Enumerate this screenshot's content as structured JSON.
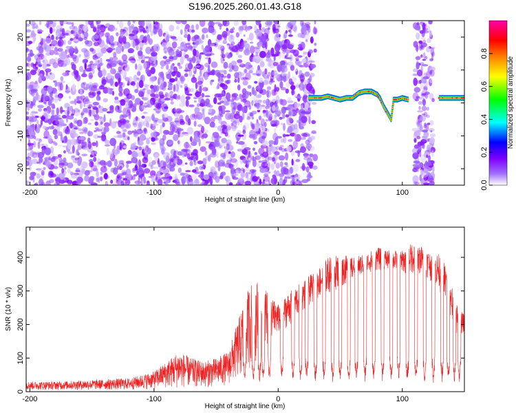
{
  "title": "S196.2025.260.01.43.G18",
  "chart_data": [
    {
      "type": "heatmap",
      "xlabel": "Height of straight line (km)",
      "ylabel": "Frequency (Hz)",
      "xlim": [
        -203,
        150
      ],
      "ylim": [
        -25,
        25
      ],
      "xticks": [
        -200,
        -100,
        0,
        100
      ],
      "yticks": [
        -20,
        -10,
        0,
        10,
        20
      ],
      "colorbar": {
        "label": "Normalized spectral amplitude",
        "range": [
          0,
          1
        ],
        "ticks": [
          0.0,
          0.2,
          0.4,
          0.6,
          0.8
        ],
        "colors": [
          "#ffffff",
          "#8000ff",
          "#0000ff",
          "#00ffff",
          "#00ff00",
          "#ffff00",
          "#ff8000",
          "#ff0000",
          "#ff00aa"
        ]
      },
      "noise_region": {
        "x_range": [
          -203,
          30
        ],
        "amplitude_range": [
          0.0,
          0.12
        ]
      },
      "noise_strips": [
        [
          110,
          125
        ]
      ],
      "signal_trace": {
        "x": [
          25,
          30,
          35,
          40,
          45,
          50,
          55,
          60,
          65,
          70,
          75,
          80,
          82,
          85,
          88,
          91,
          93,
          96,
          100,
          105,
          130,
          135,
          140,
          145,
          150
        ],
        "y": [
          1.5,
          1.5,
          1.5,
          2.0,
          1.5,
          1.0,
          1.5,
          1.5,
          3.0,
          3.5,
          3.5,
          2.5,
          1.5,
          -1.0,
          -3.0,
          -5.0,
          1.0,
          1.0,
          1.5,
          1.0,
          1.5,
          1.5,
          1.5,
          1.5,
          1.5
        ],
        "peak_amplitude": 0.9
      }
    },
    {
      "type": "line",
      "xlabel": "Height of straight line (km)",
      "ylabel": "SNR (10 * v/v)",
      "xlim": [
        -203,
        150
      ],
      "ylim": [
        0,
        490
      ],
      "xticks": [
        -200,
        -100,
        0,
        100
      ],
      "yticks": [
        0,
        100,
        200,
        300,
        400
      ],
      "color": "#ee2222",
      "envelope": {
        "x": [
          -203,
          -180,
          -150,
          -120,
          -100,
          -90,
          -80,
          -70,
          -60,
          -50,
          -40,
          -35,
          -30,
          -25,
          -20,
          -15,
          -10,
          -5,
          0,
          10,
          20,
          30,
          40,
          50,
          60,
          70,
          80,
          90,
          100,
          110,
          120,
          130,
          135,
          140,
          145,
          150
        ],
        "low": [
          5,
          5,
          5,
          5,
          8,
          10,
          10,
          12,
          12,
          15,
          20,
          30,
          40,
          60,
          80,
          100,
          120,
          150,
          170,
          200,
          240,
          270,
          290,
          310,
          330,
          350,
          360,
          360,
          350,
          350,
          340,
          300,
          260,
          200,
          150,
          180
        ],
        "high": [
          30,
          30,
          35,
          40,
          60,
          90,
          120,
          100,
          90,
          100,
          120,
          180,
          240,
          300,
          340,
          330,
          320,
          280,
          260,
          300,
          330,
          360,
          400,
          410,
          400,
          410,
          430,
          420,
          420,
          450,
          420,
          410,
          380,
          320,
          250,
          230
        ]
      },
      "dropouts": [
        -27,
        -20,
        -15,
        -12,
        -7,
        3,
        12,
        18,
        23,
        30,
        37,
        44,
        50,
        57,
        63,
        70,
        77,
        84,
        91,
        97,
        104,
        111,
        118,
        125,
        132,
        137,
        142,
        146
      ],
      "dropout_min": 25
    }
  ]
}
